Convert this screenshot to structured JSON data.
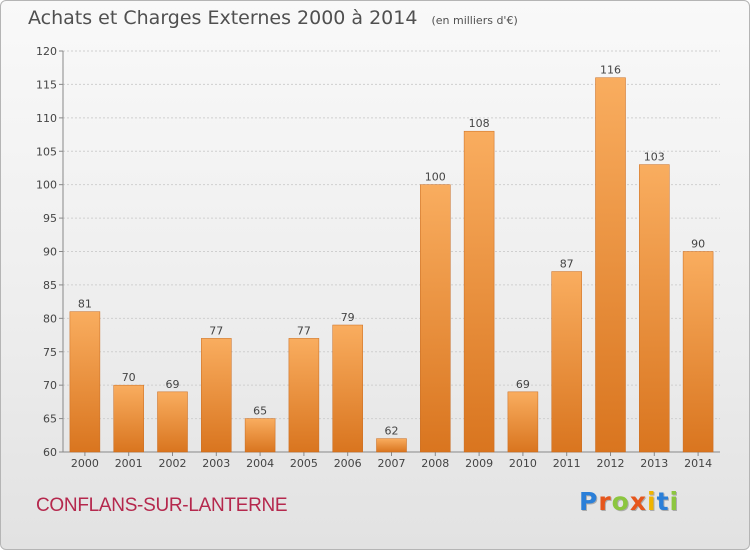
{
  "title": "Achats et Charges Externes 2000 à 2014",
  "unit": "(en milliers d'€)",
  "commune": "CONFLANS-SUR-LANTERNE",
  "brand": {
    "letters": [
      "P",
      "r",
      "o",
      "x",
      "i",
      "t",
      "i"
    ],
    "colors": [
      "#2b7fd8",
      "#e6561c",
      "#8cc63f",
      "#e6561c",
      "#f0b400",
      "#2b7fd8",
      "#8cc63f"
    ]
  },
  "colors": {
    "bar_light": "#f9ad5f",
    "bar_dark": "#d9751f",
    "text": "#444444"
  },
  "chart_data": {
    "type": "bar",
    "title": "Achats et Charges Externes 2000 à 2014",
    "categories": [
      "2000",
      "2001",
      "2002",
      "2003",
      "2004",
      "2005",
      "2006",
      "2007",
      "2008",
      "2009",
      "2010",
      "2011",
      "2012",
      "2013",
      "2014"
    ],
    "values": [
      81,
      70,
      69,
      77,
      65,
      77,
      79,
      62,
      100,
      108,
      69,
      87,
      116,
      103,
      90
    ],
    "ylim": [
      60,
      120
    ],
    "yticks": [
      60,
      65,
      70,
      75,
      80,
      85,
      90,
      95,
      100,
      105,
      110,
      115,
      120
    ],
    "grid": true,
    "xlabel": "",
    "ylabel": ""
  }
}
